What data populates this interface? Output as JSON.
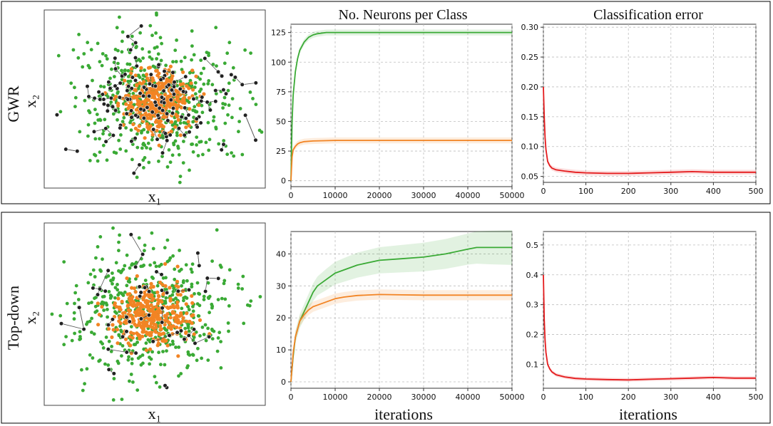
{
  "figure": {
    "row_labels": [
      "GWR",
      "Top-down"
    ],
    "x_iterations_label": "iterations",
    "scatter_axis_labels": {
      "x": "x₁",
      "y": "x₂"
    }
  },
  "colors": {
    "green": "#3aaa35",
    "orange": "#f28424",
    "red": "#e41a1c",
    "node": "#222222",
    "edge": "#555555"
  },
  "chart_data": [
    {
      "id": "gwr-scatter",
      "type": "scatter",
      "row": "GWR",
      "xlabel": "x₁",
      "ylabel": "x₂",
      "series": [
        {
          "name": "class green",
          "spread": "wide",
          "approx_points": 520
        },
        {
          "name": "class orange",
          "spread": "narrow",
          "approx_points": 360
        },
        {
          "name": "network nodes",
          "approx_points": 150
        }
      ]
    },
    {
      "id": "gwr-neurons",
      "type": "line",
      "row": "GWR",
      "title": "No. Neurons per Class",
      "xlim": [
        0,
        50000
      ],
      "ylim": [
        -5,
        132
      ],
      "xticks": [
        0,
        10000,
        20000,
        30000,
        40000,
        50000
      ],
      "yticks": [
        0,
        25,
        50,
        75,
        100,
        125
      ],
      "grid": true,
      "series": [
        {
          "name": "green class",
          "color": "green",
          "x": [
            0,
            250,
            500,
            1000,
            1500,
            2000,
            3000,
            4000,
            5000,
            6000,
            8000,
            10000,
            15000,
            20000,
            30000,
            40000,
            50000
          ],
          "y": [
            0,
            50,
            72,
            92,
            103,
            110,
            117,
            121,
            123,
            124,
            125,
            125,
            125,
            125,
            125,
            125,
            125
          ]
        },
        {
          "name": "orange class",
          "color": "orange",
          "x": [
            0,
            250,
            500,
            1000,
            1500,
            2000,
            3000,
            5000,
            10000,
            20000,
            30000,
            40000,
            50000
          ],
          "y": [
            0,
            20,
            26,
            29,
            31,
            32,
            33,
            33.5,
            34,
            34,
            34,
            34,
            34
          ]
        }
      ]
    },
    {
      "id": "gwr-error",
      "type": "line",
      "row": "GWR",
      "title": "Classification error",
      "xlim": [
        0,
        500
      ],
      "ylim": [
        0.04,
        0.305
      ],
      "xticks": [
        0,
        100,
        200,
        300,
        400,
        500
      ],
      "yticks": [
        0.05,
        0.1,
        0.15,
        0.2,
        0.25,
        0.3
      ],
      "grid": true,
      "series": [
        {
          "name": "error",
          "color": "red",
          "x": [
            0,
            2,
            4,
            6,
            8,
            10,
            15,
            20,
            30,
            50,
            75,
            100,
            150,
            200,
            250,
            300,
            350,
            400,
            450,
            500
          ],
          "y": [
            0.2,
            0.15,
            0.115,
            0.095,
            0.085,
            0.075,
            0.068,
            0.064,
            0.061,
            0.059,
            0.057,
            0.056,
            0.055,
            0.055,
            0.056,
            0.057,
            0.058,
            0.057,
            0.057,
            0.057
          ]
        }
      ]
    },
    {
      "id": "td-scatter",
      "type": "scatter",
      "row": "Top-down",
      "xlabel": "x₁",
      "ylabel": "x₂",
      "series": [
        {
          "name": "class green",
          "spread": "wide",
          "approx_points": 500
        },
        {
          "name": "class orange",
          "spread": "narrow",
          "approx_points": 340
        },
        {
          "name": "network nodes",
          "approx_points": 55
        }
      ]
    },
    {
      "id": "td-neurons",
      "type": "line",
      "row": "Top-down",
      "xlabel": "iterations",
      "xlim": [
        0,
        50000
      ],
      "ylim": [
        -2,
        47
      ],
      "xticks": [
        0,
        10000,
        20000,
        30000,
        40000,
        50000
      ],
      "yticks": [
        0,
        10,
        20,
        30,
        40
      ],
      "grid": true,
      "series": [
        {
          "name": "green class",
          "color": "green",
          "x": [
            0,
            500,
            1000,
            2000,
            3000,
            4000,
            5000,
            6000,
            7000,
            8000,
            10000,
            12000,
            15000,
            20000,
            25000,
            30000,
            35000,
            40000,
            42000,
            45000,
            50000
          ],
          "y": [
            0,
            8,
            14,
            19,
            22,
            25,
            28,
            30,
            31,
            32,
            34,
            35,
            36.5,
            38,
            38.5,
            39,
            40,
            41.5,
            42,
            42,
            42
          ]
        },
        {
          "name": "orange class",
          "color": "orange",
          "x": [
            0,
            500,
            1000,
            2000,
            3000,
            4000,
            5000,
            6000,
            8000,
            10000,
            12000,
            15000,
            20000,
            25000,
            30000,
            40000,
            50000
          ],
          "y": [
            0,
            9,
            14,
            19,
            21,
            22.5,
            23.5,
            24,
            25,
            26,
            26.5,
            27,
            27.3,
            27.2,
            27.1,
            27.1,
            27.1
          ]
        }
      ]
    },
    {
      "id": "td-error",
      "type": "line",
      "row": "Top-down",
      "xlabel": "iterations",
      "xlim": [
        0,
        500
      ],
      "ylim": [
        0.02,
        0.545
      ],
      "xticks": [
        0,
        100,
        200,
        300,
        400,
        500
      ],
      "yticks": [
        0.1,
        0.2,
        0.3,
        0.4,
        0.5
      ],
      "grid": true,
      "series": [
        {
          "name": "error",
          "color": "red",
          "x": [
            0,
            2,
            4,
            6,
            8,
            10,
            15,
            20,
            30,
            50,
            75,
            100,
            150,
            200,
            250,
            300,
            350,
            400,
            450,
            500
          ],
          "y": [
            0.4,
            0.25,
            0.18,
            0.14,
            0.12,
            0.1,
            0.085,
            0.075,
            0.065,
            0.058,
            0.053,
            0.051,
            0.049,
            0.048,
            0.05,
            0.052,
            0.054,
            0.056,
            0.054,
            0.054
          ]
        }
      ]
    }
  ]
}
